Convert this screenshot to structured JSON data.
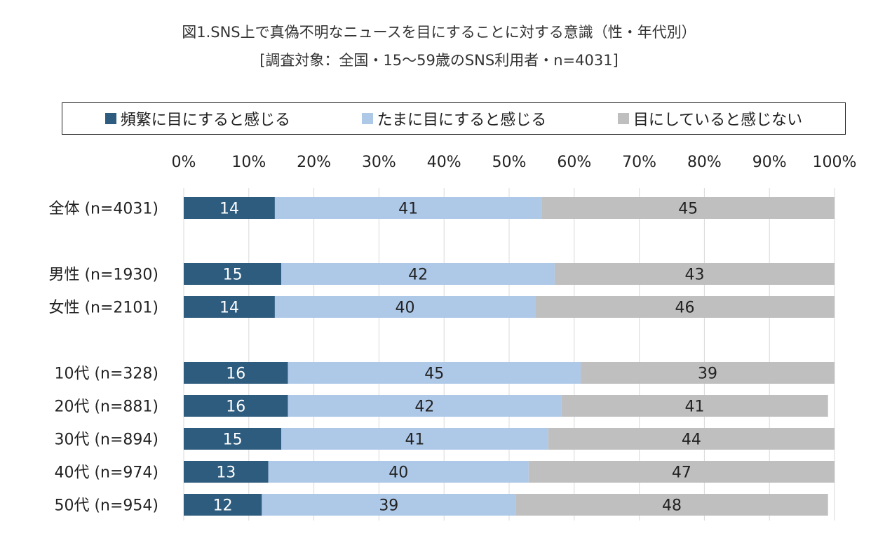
{
  "chart_data": {
    "type": "bar",
    "orientation": "horizontal",
    "stacked": true,
    "title": "図1.SNS上で真偽不明なニュースを目にすることに対する意識（性・年代別）",
    "subtitle": "[調査対象：全国・15〜59歳のSNS利用者・n=4031]",
    "xlim": [
      0,
      100
    ],
    "x_ticks": [
      "0%",
      "10%",
      "20%",
      "30%",
      "40%",
      "50%",
      "60%",
      "70%",
      "80%",
      "90%",
      "100%"
    ],
    "legend_position": "top",
    "groups": [
      {
        "rows": [
          {
            "label": "全体 (n=4031)",
            "values": [
              14,
              41,
              45
            ]
          }
        ]
      },
      {
        "rows": [
          {
            "label": "男性 (n=1930)",
            "values": [
              15,
              42,
              43
            ]
          },
          {
            "label": "女性 (n=2101)",
            "values": [
              14,
              40,
              46
            ]
          }
        ]
      },
      {
        "rows": [
          {
            "label": "10代 (n=328)",
            "values": [
              16,
              45,
              39
            ]
          },
          {
            "label": "20代 (n=881)",
            "values": [
              16,
              42,
              41
            ]
          },
          {
            "label": "30代 (n=894)",
            "values": [
              15,
              41,
              44
            ]
          },
          {
            "label": "40代 (n=974)",
            "values": [
              13,
              40,
              47
            ]
          },
          {
            "label": "50代 (n=954)",
            "values": [
              12,
              39,
              48
            ]
          }
        ]
      }
    ],
    "series": [
      {
        "name": "頻繁に目にすると感じる",
        "color": "#2e5c7e",
        "label_color": "#ffffff"
      },
      {
        "name": "たまに目にすると感じる",
        "color": "#aec8e8",
        "label_color": "#222222"
      },
      {
        "name": "目にしていると感じない",
        "color": "#bfbfbf",
        "label_color": "#222222"
      }
    ]
  }
}
